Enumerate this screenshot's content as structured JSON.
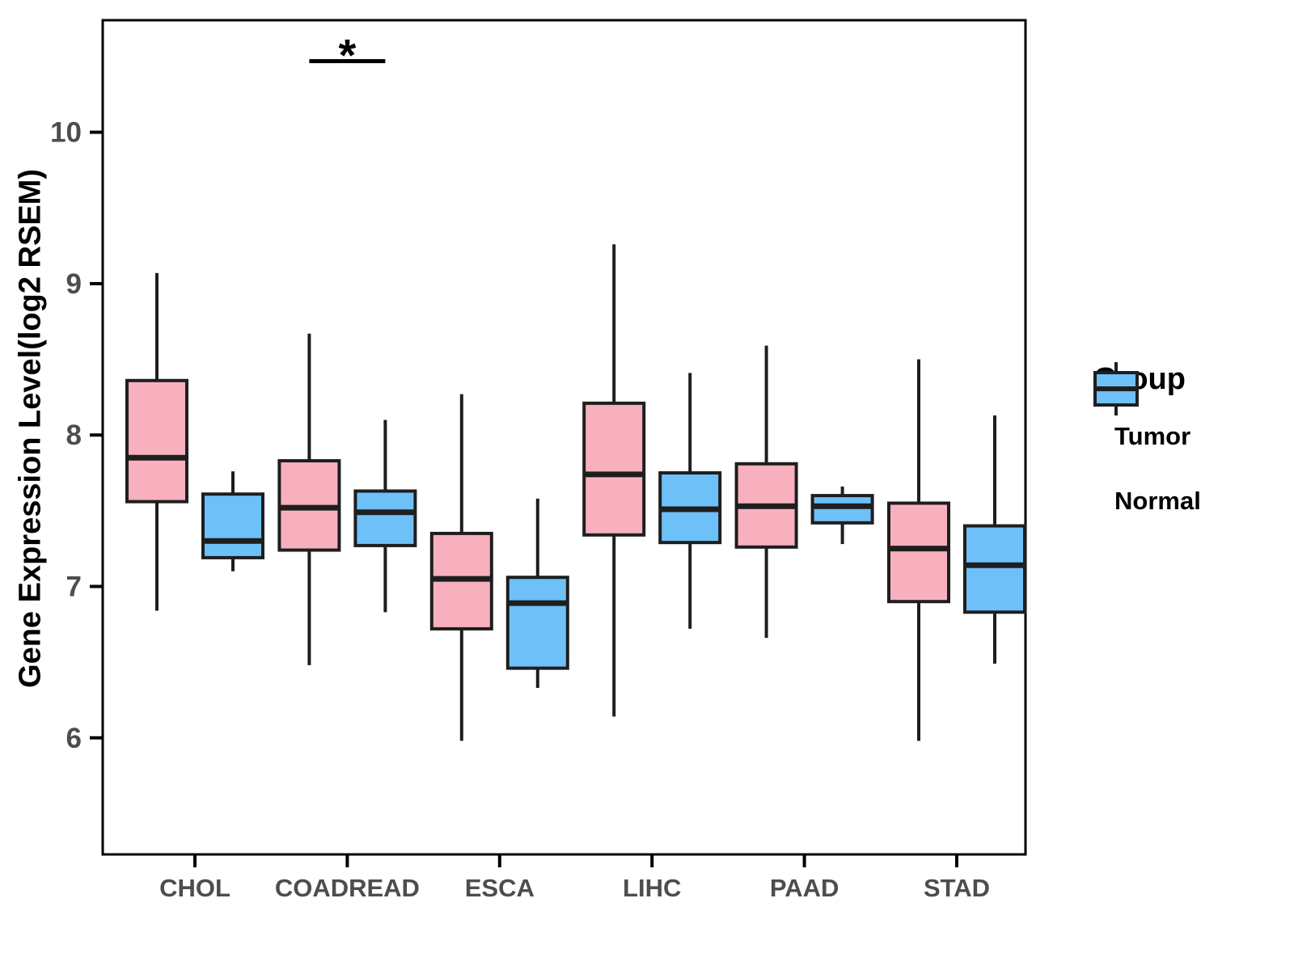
{
  "chart_data": {
    "type": "boxplot",
    "title": "",
    "xlabel": "",
    "ylabel": "Gene Expression Level(log2 RSEM)",
    "categories": [
      "CHOL",
      "COADREAD",
      "ESCA",
      "LIHC",
      "PAAD",
      "STAD"
    ],
    "yticks": [
      10,
      9,
      8,
      7,
      6
    ],
    "ylim": [
      5.23,
      10.74
    ],
    "grid": "off",
    "panel_background": "#ffffff",
    "box_outline_color": "#1e1e1e",
    "axis_text_color": "#4d4d4d",
    "legend": {
      "title": "Group",
      "position": "right",
      "entries": [
        {
          "label": "Tumor",
          "color": "#F9B0BE"
        },
        {
          "label": "Normal",
          "color": "#6EC0F8"
        }
      ]
    },
    "series": [
      {
        "name": "Tumor",
        "color": "#F9B0BE",
        "boxes": [
          {
            "category": "CHOL",
            "low": 6.84,
            "q1": 7.56,
            "median": 7.85,
            "q3": 8.36,
            "high": 9.07
          },
          {
            "category": "COADREAD",
            "low": 6.48,
            "q1": 7.24,
            "median": 7.52,
            "q3": 7.83,
            "high": 8.67
          },
          {
            "category": "ESCA",
            "low": 5.98,
            "q1": 6.72,
            "median": 7.05,
            "q3": 7.35,
            "high": 8.27
          },
          {
            "category": "LIHC",
            "low": 6.14,
            "q1": 7.34,
            "median": 7.74,
            "q3": 8.21,
            "high": 9.26
          },
          {
            "category": "PAAD",
            "low": 6.66,
            "q1": 7.26,
            "median": 7.53,
            "q3": 7.81,
            "high": 8.59
          },
          {
            "category": "STAD",
            "low": 5.98,
            "q1": 6.9,
            "median": 7.25,
            "q3": 7.55,
            "high": 8.5
          }
        ]
      },
      {
        "name": "Normal",
        "color": "#6EC0F8",
        "boxes": [
          {
            "category": "CHOL",
            "low": 7.1,
            "q1": 7.19,
            "median": 7.3,
            "q3": 7.61,
            "high": 7.76
          },
          {
            "category": "COADREAD",
            "low": 6.83,
            "q1": 7.27,
            "median": 7.49,
            "q3": 7.63,
            "high": 8.1
          },
          {
            "category": "ESCA",
            "low": 6.33,
            "q1": 6.46,
            "median": 6.89,
            "q3": 7.06,
            "high": 7.58
          },
          {
            "category": "LIHC",
            "low": 6.72,
            "q1": 7.29,
            "median": 7.51,
            "q3": 7.75,
            "high": 8.41
          },
          {
            "category": "PAAD",
            "low": 7.28,
            "q1": 7.42,
            "median": 7.53,
            "q3": 7.6,
            "high": 7.66
          },
          {
            "category": "STAD",
            "low": 6.49,
            "q1": 6.83,
            "median": 7.14,
            "q3": 7.4,
            "high": 8.13
          }
        ]
      }
    ],
    "annotations": [
      {
        "type": "significance",
        "label": "*",
        "category": "COADREAD",
        "y_value": 10.47
      }
    ]
  }
}
